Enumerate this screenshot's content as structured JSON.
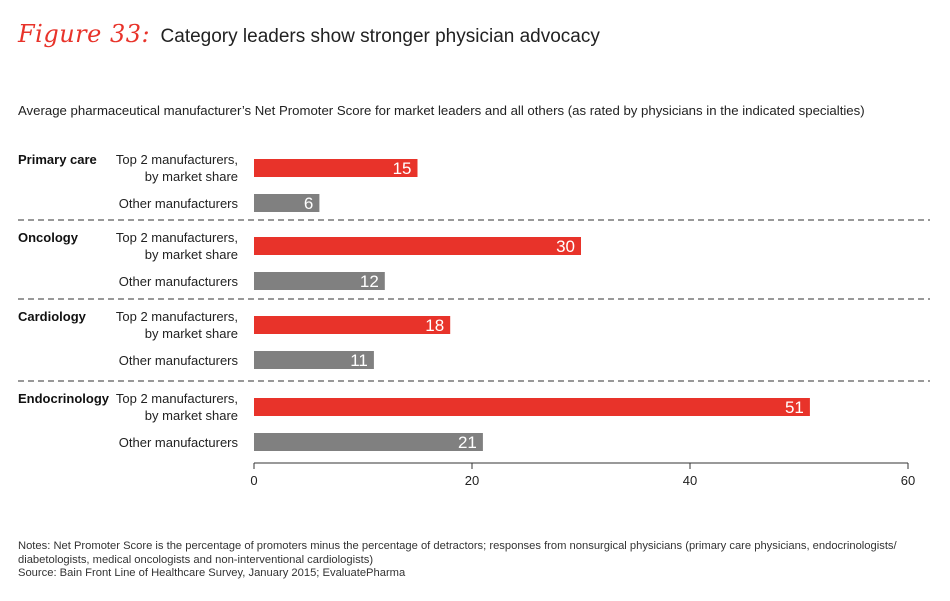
{
  "figure": {
    "label": "Figure 33:",
    "title": "Category leaders show stronger physician advocacy"
  },
  "subtitle": "Average pharmaceutical manufacturer’s Net Promoter Score for market leaders and all others (as rated by physicians in the indicated specialties)",
  "notes": [
    "Notes: Net Promoter Score is the percentage of promoters minus the percentage of detractors; responses from nonsurgical physicians (primary care physicians, endocrinologists/",
    "diabetologists, medical oncologists and non-interventional cardiologists)",
    "Source: Bain Front Line of Healthcare Survey, January 2015; EvaluatePharma"
  ],
  "colors": {
    "leader": "#e8332a",
    "other": "#808080",
    "accent": "#e8332a"
  },
  "chart_data": {
    "type": "bar",
    "orientation": "horizontal",
    "xlim": [
      0,
      60
    ],
    "xticks": [
      0,
      20,
      40,
      60
    ],
    "grid": false,
    "groups": [
      {
        "name": "Primary care",
        "bars": [
          {
            "label": [
              "Top 2 manufacturers,",
              "by market share"
            ],
            "value": 15,
            "kind": "leader"
          },
          {
            "label": [
              "Other manufacturers"
            ],
            "value": 6,
            "kind": "other"
          }
        ]
      },
      {
        "name": "Oncology",
        "bars": [
          {
            "label": [
              "Top 2 manufacturers,",
              "by market share"
            ],
            "value": 30,
            "kind": "leader"
          },
          {
            "label": [
              "Other  manufacturers"
            ],
            "value": 12,
            "kind": "other"
          }
        ]
      },
      {
        "name": "Cardiology",
        "bars": [
          {
            "label": [
              "Top 2 manufacturers,",
              "by market share"
            ],
            "value": 18,
            "kind": "leader"
          },
          {
            "label": [
              "Other manufacturers"
            ],
            "value": 11,
            "kind": "other"
          }
        ]
      },
      {
        "name": "Endocrinology",
        "bars": [
          {
            "label": [
              "Top 2 manufacturers,",
              "by market share"
            ],
            "value": 51,
            "kind": "leader"
          },
          {
            "label": [
              "Other manufacturers"
            ],
            "value": 21,
            "kind": "other"
          }
        ]
      }
    ]
  }
}
